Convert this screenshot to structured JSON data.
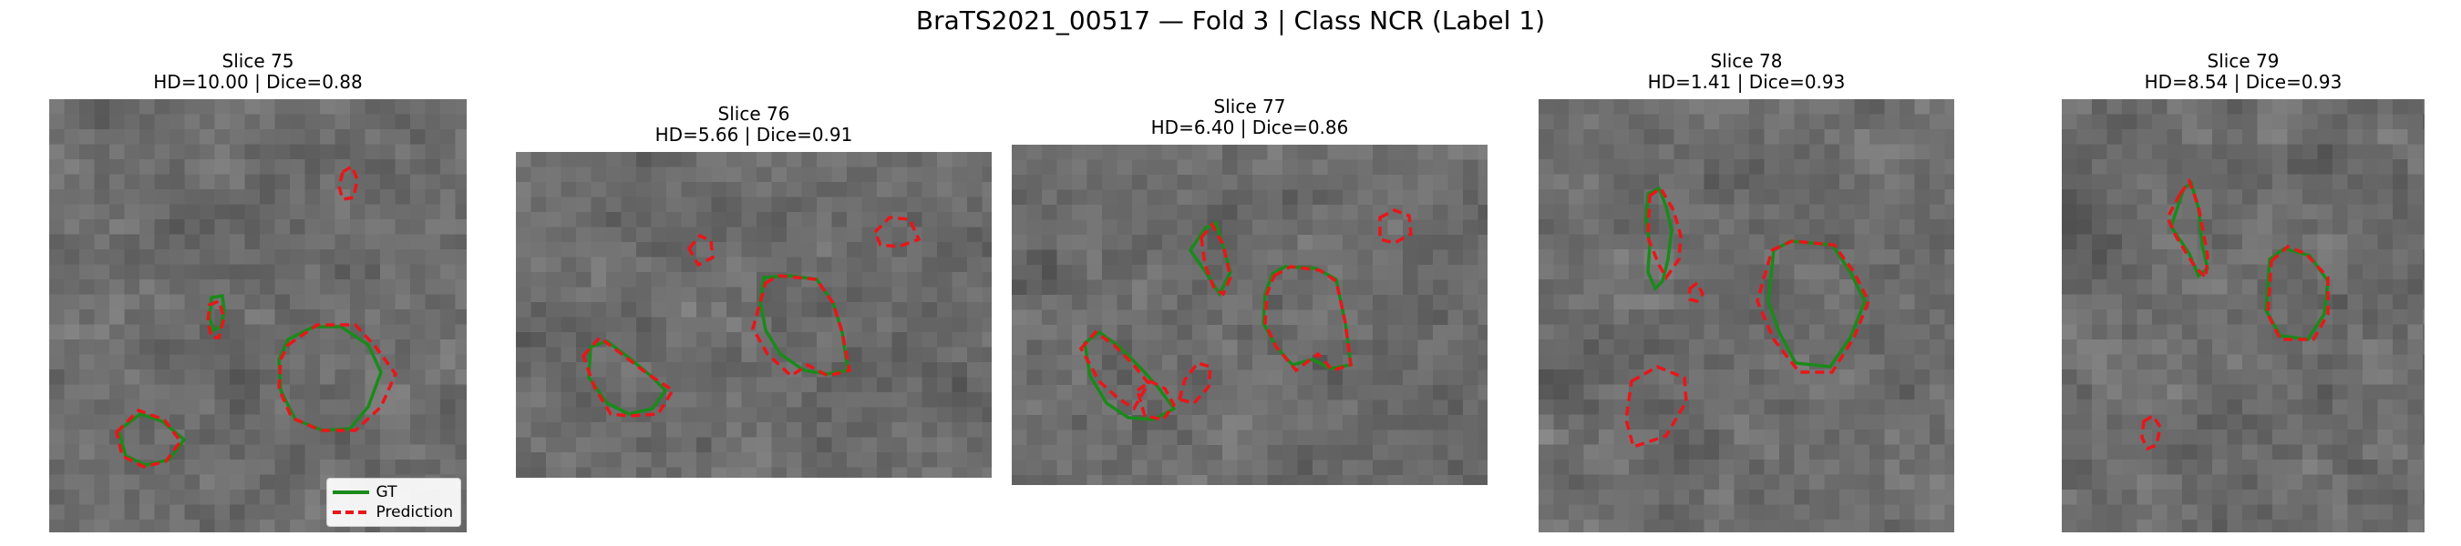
{
  "figure": {
    "title": "BraTS2021_00517 — Fold 3 | Class NCR (Label 1)"
  },
  "legend": {
    "gt_label": "GT",
    "pred_label": "Prediction",
    "gt_color": "#1a8a1a",
    "pred_color": "#e8161a"
  },
  "panels": [
    {
      "slice": "Slice 75",
      "metrics": "HD=10.00 | Dice=0.88"
    },
    {
      "slice": "Slice 76",
      "metrics": "HD=5.66 | Dice=0.91"
    },
    {
      "slice": "Slice 77",
      "metrics": "HD=6.40 | Dice=0.86"
    },
    {
      "slice": "Slice 78",
      "metrics": "HD=1.41 | Dice=0.93"
    },
    {
      "slice": "Slice 79",
      "metrics": "HD=8.54 | Dice=0.93"
    }
  ]
}
